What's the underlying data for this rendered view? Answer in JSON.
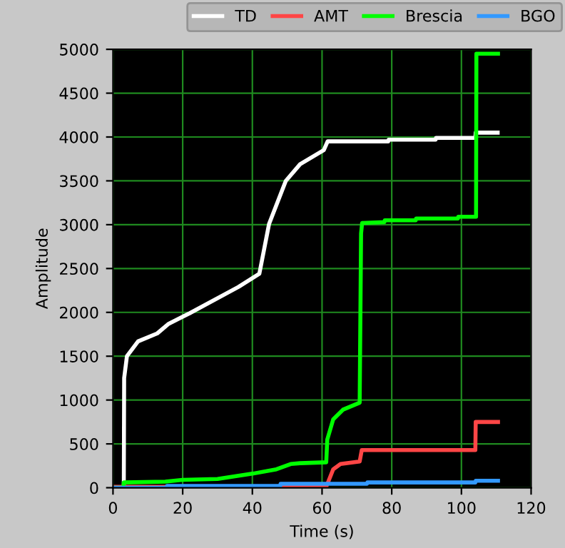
{
  "chart_data": {
    "type": "line",
    "xlabel": "Time (s)",
    "ylabel": "Amplitude",
    "xlim": [
      0,
      120
    ],
    "ylim": [
      0,
      5000
    ],
    "xticks": [
      0,
      20,
      40,
      60,
      80,
      100,
      120
    ],
    "yticks": [
      0,
      500,
      1000,
      1500,
      2000,
      2500,
      3000,
      3500,
      4000,
      4500,
      5000
    ],
    "grid": true,
    "legend": "top",
    "marker": "none",
    "line_style": "solid",
    "series": [
      {
        "name": "TD",
        "color": "#ffffff",
        "x": [
          0,
          3.1,
          3.2,
          4,
          7.2,
          12.7,
          16,
          22,
          36,
          42,
          44.8,
          49.6,
          53.7,
          60.5,
          61.6,
          79,
          79.1,
          92.6,
          92.7,
          104,
          104.1,
          110.4
        ],
        "values": [
          0,
          0,
          1250,
          1500,
          1670,
          1760,
          1870,
          1990,
          2290,
          2440,
          3010,
          3500,
          3690,
          3850,
          3950,
          3950,
          3970,
          3970,
          3990,
          3990,
          4050,
          4050
        ]
      },
      {
        "name": "AMT",
        "color": "#ff4646",
        "x": [
          0,
          61.2,
          63.2,
          65.3,
          70.8,
          71.4,
          104,
          104.1,
          110.5
        ],
        "values": [
          10,
          10,
          210,
          270,
          300,
          430,
          430,
          750,
          750
        ]
      },
      {
        "name": "Brescia",
        "color": "#00ff00",
        "x": [
          0,
          3,
          3.1,
          15,
          20,
          30,
          40,
          46.9,
          51,
          53.7,
          61.2,
          61.5,
          63.2,
          66,
          70.8,
          71.2,
          71.5,
          77.9,
          78,
          86.9,
          87,
          99,
          99.1,
          104.2,
          104.3,
          110.5
        ],
        "values": [
          0,
          0,
          60,
          70,
          90,
          100,
          160,
          210,
          270,
          280,
          290,
          550,
          780,
          890,
          970,
          2900,
          3020,
          3030,
          3050,
          3050,
          3070,
          3070,
          3090,
          3090,
          4950,
          4950
        ]
      },
      {
        "name": "BGO",
        "color": "#3399ff",
        "x": [
          0,
          15.4,
          15.5,
          48,
          48.1,
          72.9,
          73,
          104,
          104.1,
          110.5
        ],
        "values": [
          0,
          0,
          20,
          20,
          45,
          45,
          60,
          60,
          80,
          80
        ]
      }
    ]
  }
}
